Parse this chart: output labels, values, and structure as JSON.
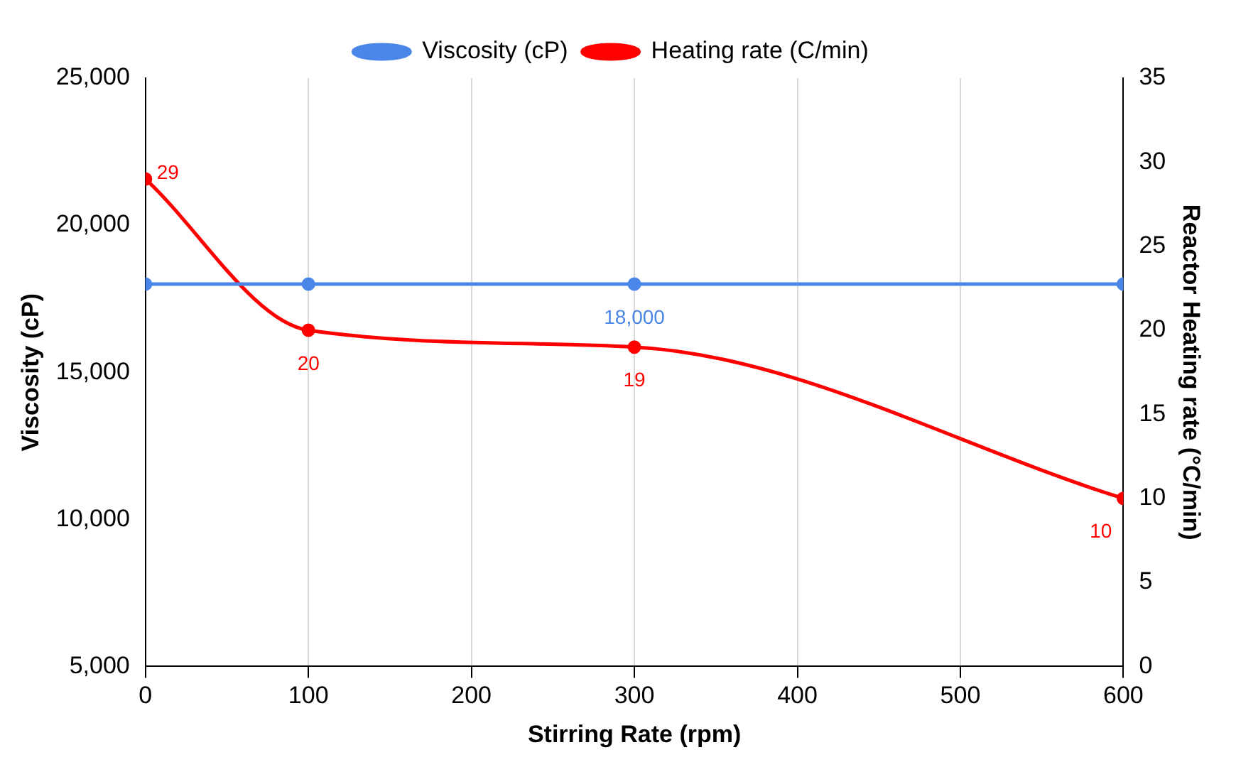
{
  "chart_data": {
    "type": "line",
    "x": [
      0,
      100,
      300,
      600
    ],
    "xlabel": "Stirring Rate (rpm)",
    "ylabel": "Viscosity (cP)",
    "y2label": "Reactor Heating rate (°C/min)",
    "series": [
      {
        "name": "Viscosity (cP)",
        "color": "#4a86e8",
        "values": [
          18000,
          18000,
          18000,
          18000
        ],
        "value_labels": [
          null,
          null,
          "18,000",
          null
        ]
      },
      {
        "name": "Heating rate (C/min)",
        "color": "#ff0000",
        "axis": "y2",
        "values": [
          29,
          20,
          19,
          10
        ],
        "value_labels": [
          "29",
          "20",
          "19",
          "10"
        ]
      }
    ],
    "xlim": [
      0,
      600
    ],
    "xticks": [
      0,
      100,
      200,
      300,
      400,
      500,
      600
    ],
    "ylim": [
      5000,
      25000
    ],
    "yticks": [
      {
        "value": 5000,
        "label": "5,000"
      },
      {
        "value": 10000,
        "label": "10,000"
      },
      {
        "value": 15000,
        "label": "15,000"
      },
      {
        "value": 20000,
        "label": "20,000"
      },
      {
        "value": 25000,
        "label": "25,000"
      }
    ],
    "y2lim": [
      0,
      35
    ],
    "y2ticks": [
      0,
      5,
      10,
      15,
      20,
      25,
      30,
      35
    ],
    "grid": "x",
    "legend": "top",
    "marker": "circle",
    "line_style": "solid"
  }
}
